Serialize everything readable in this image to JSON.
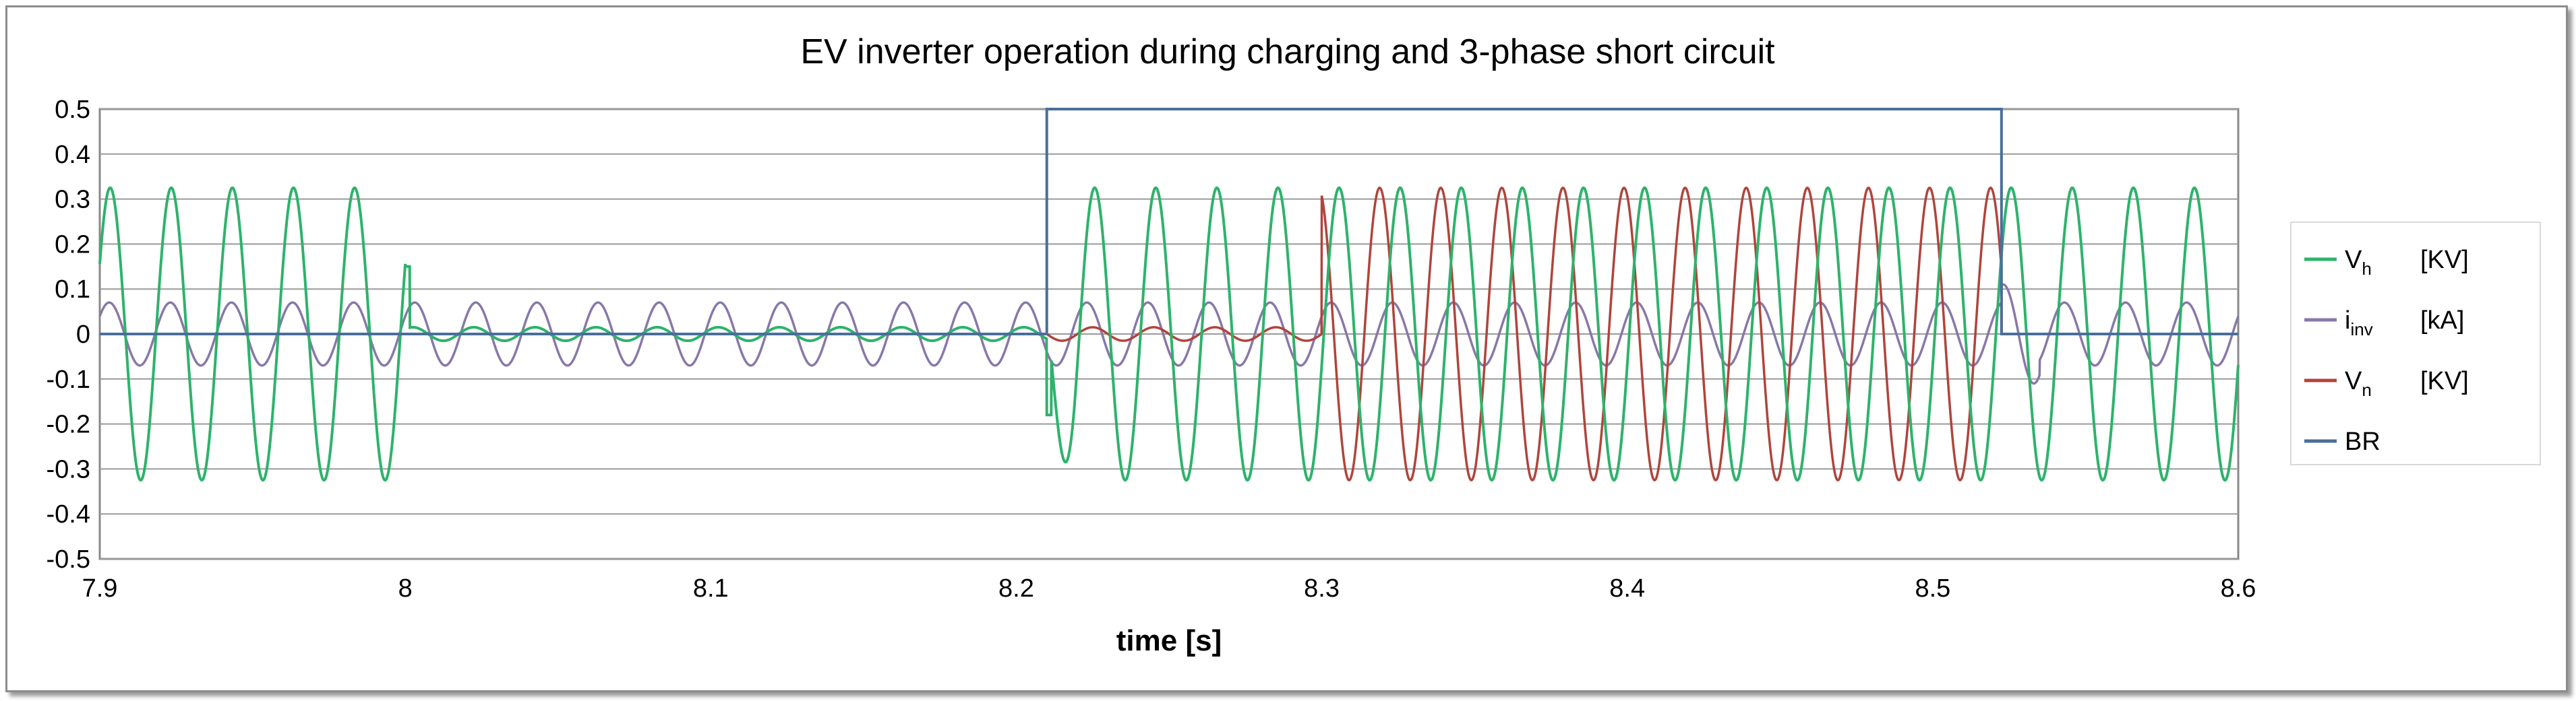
{
  "chart_data": {
    "type": "line",
    "title": "EV inverter operation during charging and 3-phase short circuit",
    "xlabel": "time [s]",
    "ylabel": "",
    "xlim": [
      7.9,
      8.6
    ],
    "ylim": [
      -0.5,
      0.5
    ],
    "x_ticks": [
      "7.9",
      "8",
      "8.1",
      "8.2",
      "8.3",
      "8.4",
      "8.5",
      "8.6"
    ],
    "y_ticks": [
      "0.5",
      "0.4",
      "0.3",
      "0.2",
      "0.1",
      "0",
      "-0.1",
      "-0.2",
      "-0.3",
      "-0.4",
      "-0.5"
    ],
    "grid": "horizontal",
    "legend_position": "right",
    "events": {
      "short_circuit_start": 8.21,
      "short_circuit_end": 8.5225
    },
    "series": [
      {
        "key": "vh",
        "name": "V",
        "subscript": "h",
        "unit": "[KV]",
        "color": "#2db36b",
        "description_points": {
          "amplitude_normal": 0.325,
          "amplitude_fault": 0.015,
          "frequency_hz": 50
        }
      },
      {
        "key": "iinv",
        "name": "i",
        "subscript": "inv",
        "unit": "[kA]",
        "color": "#8878a8",
        "description_points": {
          "amplitude": 0.07,
          "frequency_hz": 50
        }
      },
      {
        "key": "vn",
        "name": "V",
        "subscript": "n",
        "unit": "[KV]",
        "color": "#b0443c",
        "description_points": {
          "amplitude_fault": 0.015,
          "amplitude_post": 0.325,
          "frequency_hz": 50
        }
      },
      {
        "key": "br",
        "name": "BR",
        "subscript": "",
        "unit": "",
        "color": "#4a6e9a",
        "x": [
          7.9,
          8.21,
          8.21,
          8.5225,
          8.5225,
          8.6
        ],
        "y": [
          0,
          0,
          0.5,
          0.5,
          0,
          0
        ]
      }
    ]
  }
}
